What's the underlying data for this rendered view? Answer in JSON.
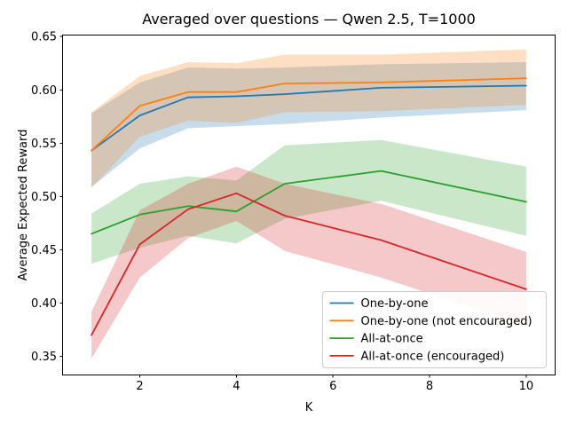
{
  "window": {
    "background": "#ffffff",
    "axis_color": "#000000"
  },
  "chart_data": {
    "type": "line",
    "title": "Averaged over questions — Qwen 2.5, T=1000",
    "xlabel": "K",
    "ylabel": "Average Expected Reward",
    "x": [
      1,
      2,
      3,
      4,
      5,
      7,
      10
    ],
    "xlim": [
      0.41,
      10.59
    ],
    "ylim": [
      0.333,
      0.651
    ],
    "xticks": [
      2,
      4,
      6,
      8,
      10
    ],
    "xtick_labels": [
      "2",
      "4",
      "6",
      "8",
      "10"
    ],
    "yticks": [
      0.35,
      0.4,
      0.45,
      0.5,
      0.55,
      0.6,
      0.65
    ],
    "ytick_labels": [
      "0.35",
      "0.40",
      "0.45",
      "0.50",
      "0.55",
      "0.60",
      "0.65"
    ],
    "grid": false,
    "band_alpha": 0.25,
    "legend": {
      "position": "lower-right",
      "border_color": "#cccccc",
      "background": "#ffffff"
    },
    "series": [
      {
        "name": "One-by-one",
        "color": "#1f77b4",
        "values": [
          0.543,
          0.576,
          0.593,
          0.594,
          0.596,
          0.602,
          0.604
        ],
        "band_lower": [
          0.509,
          0.545,
          0.564,
          0.566,
          0.568,
          0.574,
          0.581
        ],
        "band_upper": [
          0.578,
          0.607,
          0.621,
          0.62,
          0.621,
          0.624,
          0.626
        ]
      },
      {
        "name": "One-by-one (not encouraged)",
        "color": "#ff7f0e",
        "values": [
          0.543,
          0.585,
          0.598,
          0.598,
          0.606,
          0.607,
          0.611
        ],
        "band_lower": [
          0.508,
          0.556,
          0.571,
          0.569,
          0.579,
          0.58,
          0.586
        ],
        "band_upper": [
          0.579,
          0.613,
          0.626,
          0.625,
          0.633,
          0.633,
          0.638
        ]
      },
      {
        "name": "All-at-once",
        "color": "#2ca02c",
        "values": [
          0.465,
          0.483,
          0.491,
          0.486,
          0.512,
          0.524,
          0.495
        ],
        "band_lower": [
          0.437,
          0.452,
          0.463,
          0.456,
          0.479,
          0.496,
          0.463
        ],
        "band_upper": [
          0.484,
          0.512,
          0.519,
          0.515,
          0.548,
          0.553,
          0.528
        ]
      },
      {
        "name": "All-at-once (encouraged)",
        "color": "#d62728",
        "values": [
          0.37,
          0.455,
          0.488,
          0.503,
          0.482,
          0.459,
          0.413
        ],
        "band_lower": [
          0.348,
          0.424,
          0.461,
          0.477,
          0.449,
          0.424,
          0.379
        ],
        "band_upper": [
          0.392,
          0.487,
          0.512,
          0.528,
          0.512,
          0.493,
          0.448
        ]
      }
    ]
  }
}
